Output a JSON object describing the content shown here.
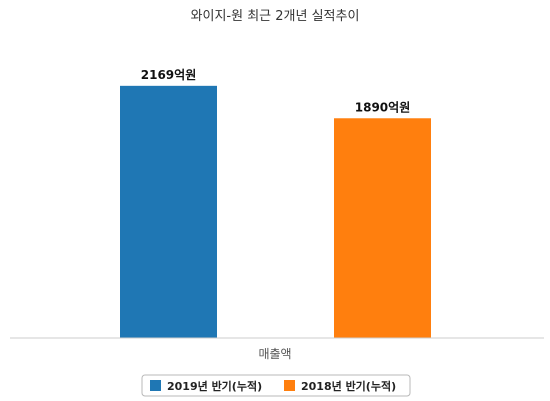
{
  "chart_data": {
    "type": "bar",
    "title": "와이지-원 최근 2개년 실적추이",
    "categories": [
      "매출액"
    ],
    "series": [
      {
        "name": "2019년 반기(누적)",
        "values": [
          2169
        ],
        "label": "2169억원",
        "color": "#1f77b4"
      },
      {
        "name": "2018년 반기(누적)",
        "values": [
          1890
        ],
        "label": "1890억원",
        "color": "#ff7f0e"
      }
    ],
    "ylim": [
      0,
      2460
    ],
    "grid": false,
    "legend_position": "bottom"
  }
}
